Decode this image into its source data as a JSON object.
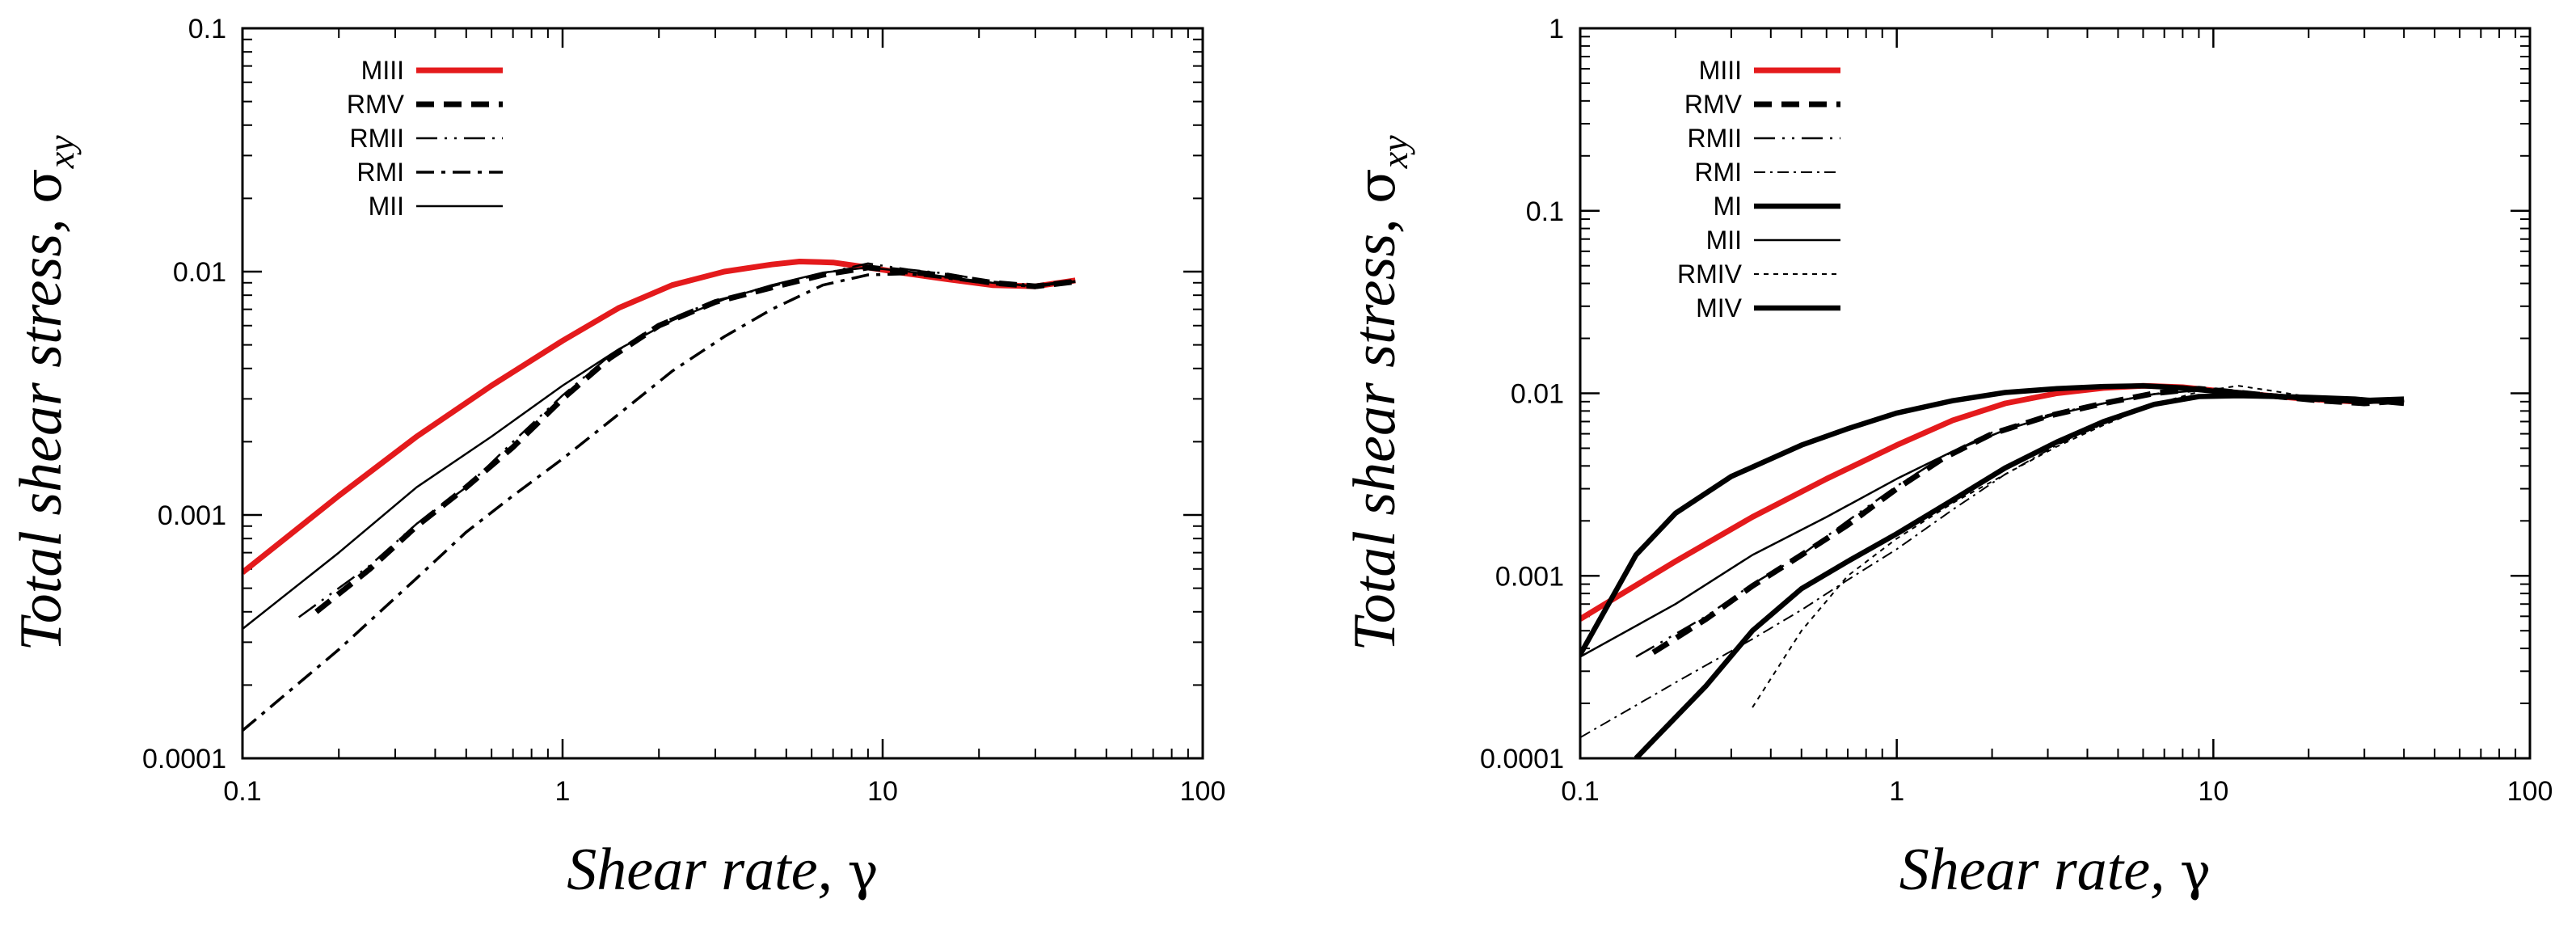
{
  "chart_data": [
    {
      "type": "line",
      "xscale": "log",
      "yscale": "log",
      "xlim": [
        0.1,
        100
      ],
      "ylim": [
        0.0001,
        0.1
      ],
      "x_ticks": [
        "0.1",
        "1",
        "10",
        "100"
      ],
      "y_ticks": [
        "0.0001",
        "0.001",
        "0.01",
        "0.1"
      ],
      "xlabel": {
        "text": "Shear rate, ",
        "symbol": "γ"
      },
      "ylabel": {
        "text": "Total shear stress, ",
        "symbol": "σ",
        "sub": "xy"
      },
      "legend_position": "top-left",
      "series": [
        {
          "name": "MIII",
          "color": "#e41a1c",
          "style": "thick-red",
          "x": [
            0.1,
            0.2,
            0.35,
            0.6,
            1.0,
            1.5,
            2.2,
            3.2,
            4.5,
            5.5,
            7.0,
            9.0,
            12,
            16,
            22,
            30,
            40
          ],
          "y": [
            0.00058,
            0.0012,
            0.0021,
            0.0034,
            0.0052,
            0.0071,
            0.0088,
            0.01,
            0.0107,
            0.011,
            0.0109,
            0.0104,
            0.0098,
            0.0093,
            0.0088,
            0.0087,
            0.0092
          ]
        },
        {
          "name": "RMV",
          "color": "#000000",
          "style": "thick-dash",
          "x": [
            0.17,
            0.25,
            0.35,
            0.5,
            0.7,
            1.0,
            1.4,
            2.0,
            3.0,
            4.5,
            6.5,
            9.0,
            12,
            16,
            22,
            30,
            40
          ],
          "y": [
            0.0004,
            0.0006,
            0.0009,
            0.0013,
            0.0019,
            0.003,
            0.0044,
            0.006,
            0.0075,
            0.0086,
            0.0097,
            0.0104,
            0.01,
            0.0096,
            0.009,
            0.0087,
            0.0091
          ]
        },
        {
          "name": "RMII",
          "color": "#000000",
          "style": "dash-dot-dot",
          "x": [
            0.15,
            0.25,
            0.35,
            0.5,
            0.7,
            1.0,
            1.4,
            2.0,
            3.0,
            4.5,
            6.5,
            9.0,
            12,
            16,
            22,
            30,
            40
          ],
          "y": [
            0.00038,
            0.00062,
            0.00092,
            0.0013,
            0.002,
            0.0031,
            0.0045,
            0.0061,
            0.0076,
            0.0087,
            0.0098,
            0.0108,
            0.0102,
            0.0098,
            0.0091,
            0.0088,
            0.0092
          ]
        },
        {
          "name": "RMI",
          "color": "#000000",
          "style": "dash-dot",
          "x": [
            0.1,
            0.2,
            0.35,
            0.5,
            0.7,
            1.0,
            1.5,
            2.2,
            3.2,
            4.5,
            6.5,
            9.0,
            12,
            16,
            22,
            30,
            40
          ],
          "y": [
            0.00013,
            0.00028,
            0.00055,
            0.00085,
            0.0012,
            0.0017,
            0.0026,
            0.0039,
            0.0054,
            0.007,
            0.0088,
            0.0097,
            0.0098,
            0.0094,
            0.0089,
            0.0087,
            0.0091
          ]
        },
        {
          "name": "MII",
          "color": "#000000",
          "style": "thin",
          "x": [
            0.1,
            0.2,
            0.35,
            0.6,
            1.0,
            1.5,
            2.2,
            3.2,
            4.5,
            6.5,
            9.0,
            12,
            16,
            22,
            30,
            40
          ],
          "y": [
            0.00034,
            0.0007,
            0.0013,
            0.0021,
            0.0034,
            0.0048,
            0.0063,
            0.0077,
            0.0088,
            0.0099,
            0.0104,
            0.01,
            0.0095,
            0.009,
            0.0087,
            0.0091
          ]
        }
      ]
    },
    {
      "type": "line",
      "xscale": "log",
      "yscale": "log",
      "xlim": [
        0.1,
        100
      ],
      "ylim": [
        0.0001,
        1
      ],
      "x_ticks": [
        "0.1",
        "1",
        "10",
        "100"
      ],
      "y_ticks": [
        "0.0001",
        "0.001",
        "0.01",
        "0.1",
        "1"
      ],
      "xlabel": {
        "text": "Shear rate, ",
        "symbol": "γ"
      },
      "ylabel": {
        "text": "Total shear stress, ",
        "symbol": "σ",
        "sub": "xy"
      },
      "legend_position": "top-left",
      "series": [
        {
          "name": "MIII",
          "color": "#e41a1c",
          "style": "thick-red",
          "x": [
            0.1,
            0.2,
            0.35,
            0.6,
            1.0,
            1.5,
            2.2,
            3.2,
            4.5,
            6.0,
            8.0,
            11,
            15,
            20,
            28,
            40
          ],
          "y": [
            0.00058,
            0.0012,
            0.0021,
            0.0034,
            0.0052,
            0.0071,
            0.0088,
            0.01,
            0.0107,
            0.011,
            0.0108,
            0.0102,
            0.0097,
            0.0093,
            0.009,
            0.0092
          ]
        },
        {
          "name": "RMV",
          "color": "#000000",
          "style": "thick-dash",
          "x": [
            0.17,
            0.25,
            0.35,
            0.5,
            0.7,
            1.0,
            1.4,
            2.0,
            3.0,
            4.5,
            6.5,
            9.0,
            12,
            16,
            22,
            30,
            40
          ],
          "y": [
            0.00038,
            0.00058,
            0.00088,
            0.0013,
            0.0019,
            0.003,
            0.0044,
            0.006,
            0.0075,
            0.0088,
            0.01,
            0.0106,
            0.0101,
            0.0096,
            0.0091,
            0.0088,
            0.0091
          ]
        },
        {
          "name": "RMII",
          "color": "#000000",
          "style": "dash-dot-dot",
          "x": [
            0.15,
            0.25,
            0.35,
            0.5,
            0.7,
            1.0,
            1.4,
            2.0,
            3.0,
            4.5,
            6.5,
            9.0,
            12,
            16,
            22,
            30,
            40
          ],
          "y": [
            0.00036,
            0.0006,
            0.0009,
            0.0013,
            0.002,
            0.0031,
            0.0045,
            0.0061,
            0.0076,
            0.0088,
            0.0099,
            0.0108,
            0.0103,
            0.0098,
            0.0092,
            0.0089,
            0.0092
          ]
        },
        {
          "name": "RMI",
          "color": "#000000",
          "style": "thin-dash-dot",
          "x": [
            0.1,
            0.2,
            0.35,
            0.5,
            0.7,
            1.0,
            1.5,
            2.2,
            3.2,
            4.5,
            6.5,
            9.0,
            12,
            16,
            22,
            30,
            40
          ],
          "y": [
            0.00013,
            0.00026,
            0.00045,
            0.00065,
            0.00095,
            0.0014,
            0.0023,
            0.0036,
            0.0052,
            0.0068,
            0.0086,
            0.0097,
            0.0099,
            0.0095,
            0.009,
            0.0088,
            0.0091
          ]
        },
        {
          "name": "MI",
          "color": "#000000",
          "style": "thick-solid",
          "x": [
            0.1,
            0.15,
            0.2,
            0.3,
            0.5,
            0.7,
            1.0,
            1.5,
            2.2,
            3.2,
            4.5,
            6.0,
            8.0,
            11,
            15,
            20,
            28,
            40
          ],
          "y": [
            0.00037,
            0.0013,
            0.0022,
            0.0035,
            0.0052,
            0.0064,
            0.0078,
            0.0091,
            0.0101,
            0.0106,
            0.0109,
            0.011,
            0.0107,
            0.0101,
            0.0097,
            0.0094,
            0.0091,
            0.0093
          ]
        },
        {
          "name": "MII",
          "color": "#000000",
          "style": "thin",
          "x": [
            0.1,
            0.2,
            0.35,
            0.6,
            1.0,
            1.5,
            2.2,
            3.2,
            4.5,
            6.5,
            9.0,
            12,
            16,
            22,
            30,
            40
          ],
          "y": [
            0.00036,
            0.0007,
            0.0013,
            0.0021,
            0.0034,
            0.0048,
            0.0063,
            0.0077,
            0.0088,
            0.0099,
            0.0104,
            0.01,
            0.0096,
            0.0091,
            0.0088,
            0.0091
          ]
        },
        {
          "name": "RMIV",
          "color": "#000000",
          "style": "thin-dot",
          "x": [
            0.35,
            0.5,
            0.7,
            1.0,
            1.5,
            2.2,
            3.2,
            4.5,
            6.5,
            9.0,
            12,
            16,
            22,
            30,
            40
          ],
          "y": [
            0.00019,
            0.0005,
            0.001,
            0.0016,
            0.0025,
            0.0036,
            0.0051,
            0.0067,
            0.0087,
            0.0102,
            0.011,
            0.0102,
            0.0093,
            0.0088,
            0.0091
          ]
        },
        {
          "name": "MIV",
          "color": "#000000",
          "style": "thick-solid",
          "x": [
            0.15,
            0.25,
            0.35,
            0.5,
            0.7,
            1.0,
            1.5,
            2.2,
            3.2,
            4.5,
            6.5,
            9.0,
            12,
            16,
            20,
            28,
            40
          ],
          "y": [
            0.0001,
            0.00025,
            0.0005,
            0.00085,
            0.0012,
            0.0017,
            0.0026,
            0.0039,
            0.0054,
            0.007,
            0.0087,
            0.0096,
            0.0097,
            0.0096,
            0.0095,
            0.0093,
            0.0088
          ]
        }
      ]
    }
  ]
}
